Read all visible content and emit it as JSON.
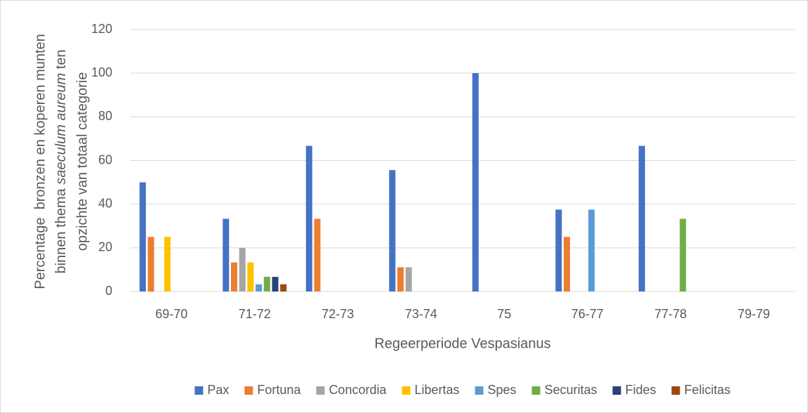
{
  "chart_data": {
    "type": "bar",
    "x_label": "Regeerperiode Vespasianus",
    "y_label": [
      "Percentage  bronzen en koperen munten",
      [
        "binnen thema ",
        "saeculum aureum",
        " ten"
      ],
      "opzichte van totaal categorie"
    ],
    "categories": [
      "69-70",
      "71-72",
      "72-73",
      "73-74",
      "75",
      "76-77",
      "77-78",
      "79-79"
    ],
    "series": [
      {
        "name": "Pax",
        "color": "#4472C4",
        "values": [
          50,
          33.3,
          66.7,
          55.6,
          100,
          37.5,
          66.7,
          0
        ]
      },
      {
        "name": "Fortuna",
        "color": "#ED7D31",
        "values": [
          25,
          13.3,
          33.3,
          11.1,
          0,
          25,
          0,
          0
        ]
      },
      {
        "name": "Concordia",
        "color": "#A5A5A5",
        "values": [
          0,
          20,
          0,
          11.1,
          0,
          0,
          0,
          0
        ]
      },
      {
        "name": "Libertas",
        "color": "#FFC000",
        "values": [
          25,
          13.3,
          0,
          0,
          0,
          0,
          0,
          0
        ]
      },
      {
        "name": "Spes",
        "color": "#5B9BD5",
        "values": [
          0,
          3.3,
          0,
          0,
          0,
          37.5,
          0,
          0
        ]
      },
      {
        "name": "Securitas",
        "color": "#70AD47",
        "values": [
          0,
          6.7,
          0,
          0,
          0,
          0,
          33.3,
          0
        ]
      },
      {
        "name": "Fides",
        "color": "#264478",
        "values": [
          0,
          6.7,
          0,
          0,
          0,
          0,
          0,
          0
        ]
      },
      {
        "name": "Felicitas",
        "color": "#9E480E",
        "values": [
          0,
          3.3,
          0,
          0,
          0,
          0,
          0,
          0
        ]
      }
    ],
    "ylim": [
      0,
      120
    ],
    "yticks": [
      0,
      20,
      40,
      60,
      80,
      100,
      120
    ],
    "grid": true,
    "legend": "bottom"
  }
}
